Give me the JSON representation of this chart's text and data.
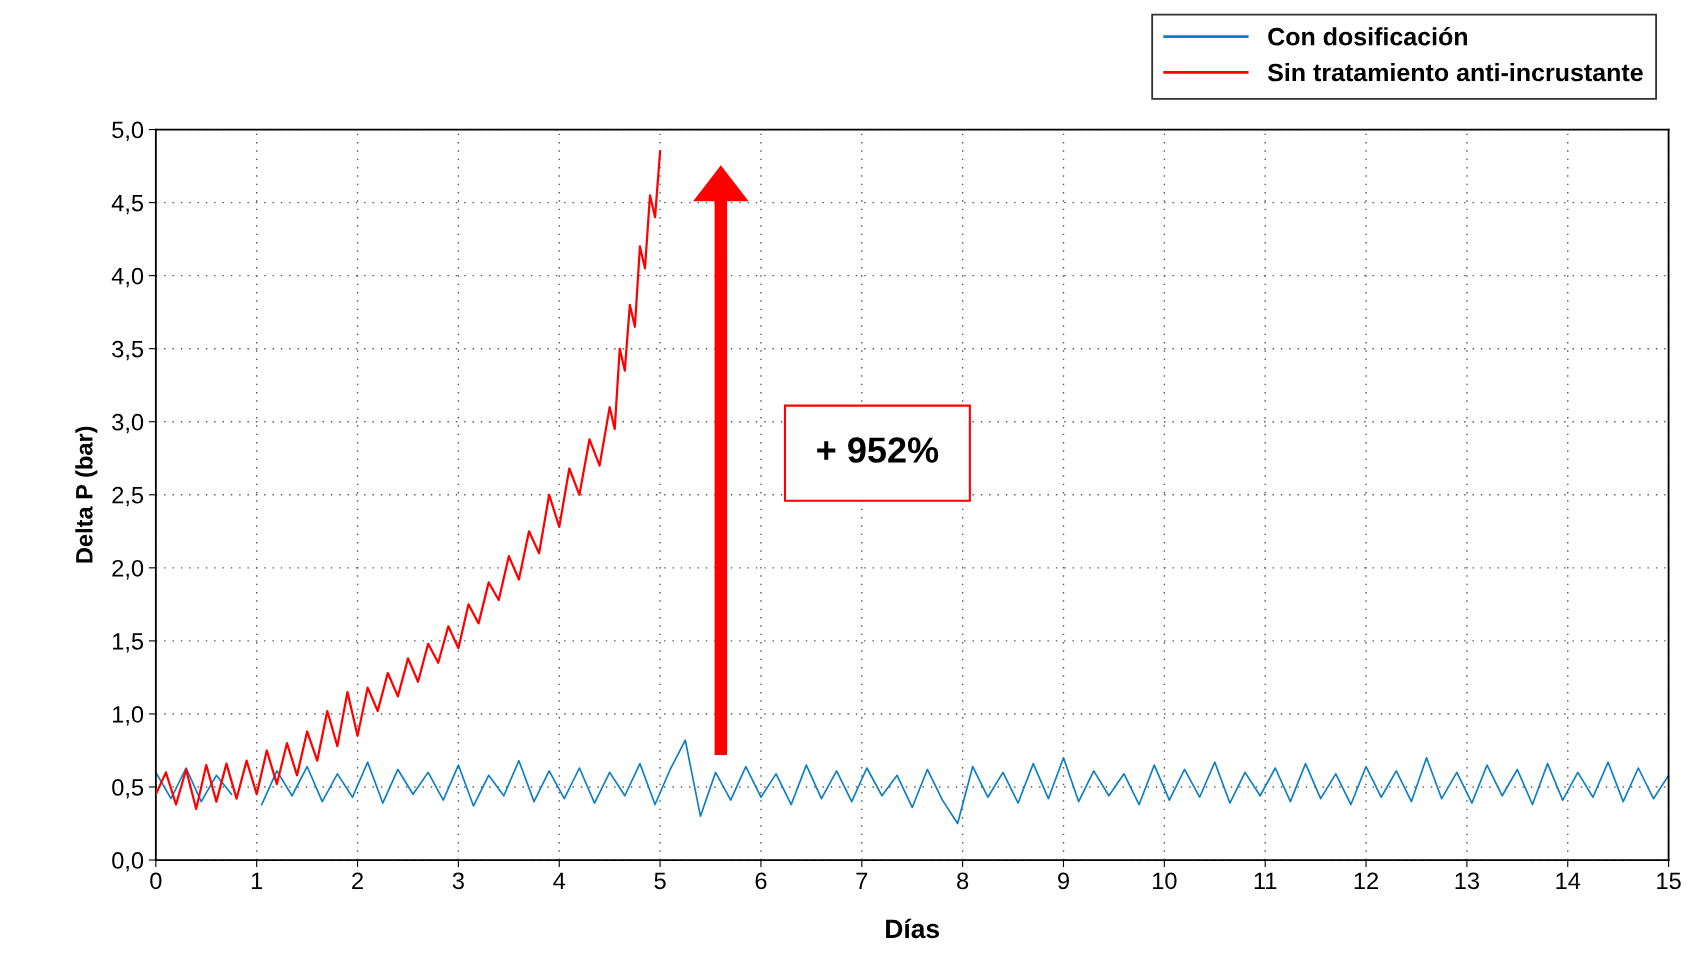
{
  "chart_data": {
    "type": "line",
    "xlabel": "Días",
    "ylabel": "Delta P (bar)",
    "xlim": [
      0,
      15
    ],
    "xticks": [
      0,
      1,
      2,
      3,
      4,
      5,
      6,
      7,
      8,
      9,
      10,
      11,
      12,
      13,
      14,
      15
    ],
    "ylim": [
      0,
      5
    ],
    "yticks": [
      {
        "value": 0,
        "label": "0,0"
      },
      {
        "value": 0.5,
        "label": "0,5"
      },
      {
        "value": 1,
        "label": "1,0"
      },
      {
        "value": 1.5,
        "label": "1,5"
      },
      {
        "value": 2,
        "label": "2,0"
      },
      {
        "value": 2.5,
        "label": "2,5"
      },
      {
        "value": 3,
        "label": "3,0"
      },
      {
        "value": 3.5,
        "label": "3,5"
      },
      {
        "value": 4,
        "label": "4,0"
      },
      {
        "value": 4.5,
        "label": "4,5"
      },
      {
        "value": 5,
        "label": "5,0"
      }
    ],
    "grid": true,
    "legend": "top right",
    "marker": "none",
    "line_style": "solid",
    "annotations": [
      "+ 952%"
    ],
    "series": [
      {
        "name": "Con dosificación",
        "color": "#0e7ec4",
        "x": [
          0,
          0.15,
          0.3,
          0.45,
          0.6,
          0.75,
          0.9,
          1.05,
          1.2,
          1.35,
          1.5,
          1.65,
          1.8,
          1.95,
          2.1,
          2.25,
          2.4,
          2.55,
          2.7,
          2.85,
          3,
          3.15,
          3.3,
          3.45,
          3.6,
          3.75,
          3.9,
          4.05,
          4.2,
          4.35,
          4.5,
          4.65,
          4.8,
          4.95,
          5.1,
          5.25,
          5.4,
          5.55,
          5.7,
          5.85,
          6,
          6.15,
          6.3,
          6.45,
          6.6,
          6.75,
          6.9,
          7.05,
          7.2,
          7.35,
          7.5,
          7.65,
          7.8,
          7.95,
          8.1,
          8.25,
          8.4,
          8.55,
          8.7,
          8.85,
          9,
          9.15,
          9.3,
          9.45,
          9.6,
          9.75,
          9.9,
          10.05,
          10.2,
          10.35,
          10.5,
          10.65,
          10.8,
          10.95,
          11.1,
          11.25,
          11.4,
          11.55,
          11.7,
          11.85,
          12,
          12.15,
          12.3,
          12.45,
          12.6,
          12.75,
          12.9,
          13.05,
          13.2,
          13.35,
          13.5,
          13.65,
          13.8,
          13.95,
          14.1,
          14.25,
          14.4,
          14.55,
          14.7,
          14.85,
          15
        ],
        "values": [
          0.6,
          0.42,
          0.63,
          0.4,
          0.58,
          0.45,
          null,
          0.38,
          0.61,
          0.44,
          0.64,
          0.4,
          0.59,
          0.43,
          0.67,
          0.39,
          0.62,
          0.45,
          0.6,
          0.41,
          0.65,
          0.37,
          0.58,
          0.44,
          0.68,
          0.4,
          0.61,
          0.42,
          0.63,
          0.39,
          0.6,
          0.44,
          0.66,
          0.38,
          0.62,
          0.82,
          0.3,
          0.6,
          0.41,
          0.64,
          0.43,
          0.59,
          0.38,
          0.65,
          0.42,
          0.61,
          0.4,
          0.63,
          0.44,
          0.58,
          0.36,
          0.62,
          0.41,
          0.25,
          0.64,
          0.43,
          0.6,
          0.39,
          0.66,
          0.42,
          0.7,
          0.4,
          0.61,
          0.44,
          0.59,
          0.38,
          0.65,
          0.41,
          0.62,
          0.43,
          0.67,
          0.39,
          0.6,
          0.44,
          0.63,
          0.4,
          0.66,
          0.42,
          0.59,
          0.38,
          0.64,
          0.43,
          0.61,
          0.4,
          0.7,
          0.42,
          0.6,
          0.39,
          0.65,
          0.44,
          0.62,
          0.38,
          0.66,
          0.41,
          0.6,
          0.43,
          0.67,
          0.4,
          0.63,
          0.42,
          0.58
        ]
      },
      {
        "name": "Sin tratamiento anti-incrustante",
        "color": "#ff0000",
        "x": [
          0,
          0.1,
          0.2,
          0.3,
          0.4,
          0.5,
          0.6,
          0.7,
          0.8,
          0.9,
          1.0,
          1.1,
          1.2,
          1.3,
          1.4,
          1.5,
          1.6,
          1.7,
          1.8,
          1.9,
          2.0,
          2.1,
          2.2,
          2.3,
          2.4,
          2.5,
          2.6,
          2.7,
          2.8,
          2.9,
          3.0,
          3.1,
          3.2,
          3.3,
          3.4,
          3.5,
          3.6,
          3.7,
          3.8,
          3.9,
          4.0,
          4.1,
          4.2,
          4.3,
          4.4,
          4.5,
          4.55,
          4.6,
          4.65,
          4.7,
          4.75,
          4.8,
          4.85,
          4.9,
          4.95,
          5.0
        ],
        "values": [
          0.45,
          0.6,
          0.38,
          0.62,
          0.35,
          0.65,
          0.4,
          0.66,
          0.42,
          0.68,
          0.45,
          0.75,
          0.52,
          0.8,
          0.58,
          0.88,
          0.68,
          1.02,
          0.78,
          1.15,
          0.85,
          1.18,
          1.02,
          1.28,
          1.12,
          1.38,
          1.22,
          1.48,
          1.35,
          1.6,
          1.45,
          1.75,
          1.62,
          1.9,
          1.78,
          2.08,
          1.92,
          2.25,
          2.1,
          2.5,
          2.28,
          2.68,
          2.5,
          2.88,
          2.7,
          3.1,
          2.95,
          3.5,
          3.35,
          3.8,
          3.65,
          4.2,
          4.05,
          4.55,
          4.4,
          4.85
        ]
      }
    ]
  }
}
